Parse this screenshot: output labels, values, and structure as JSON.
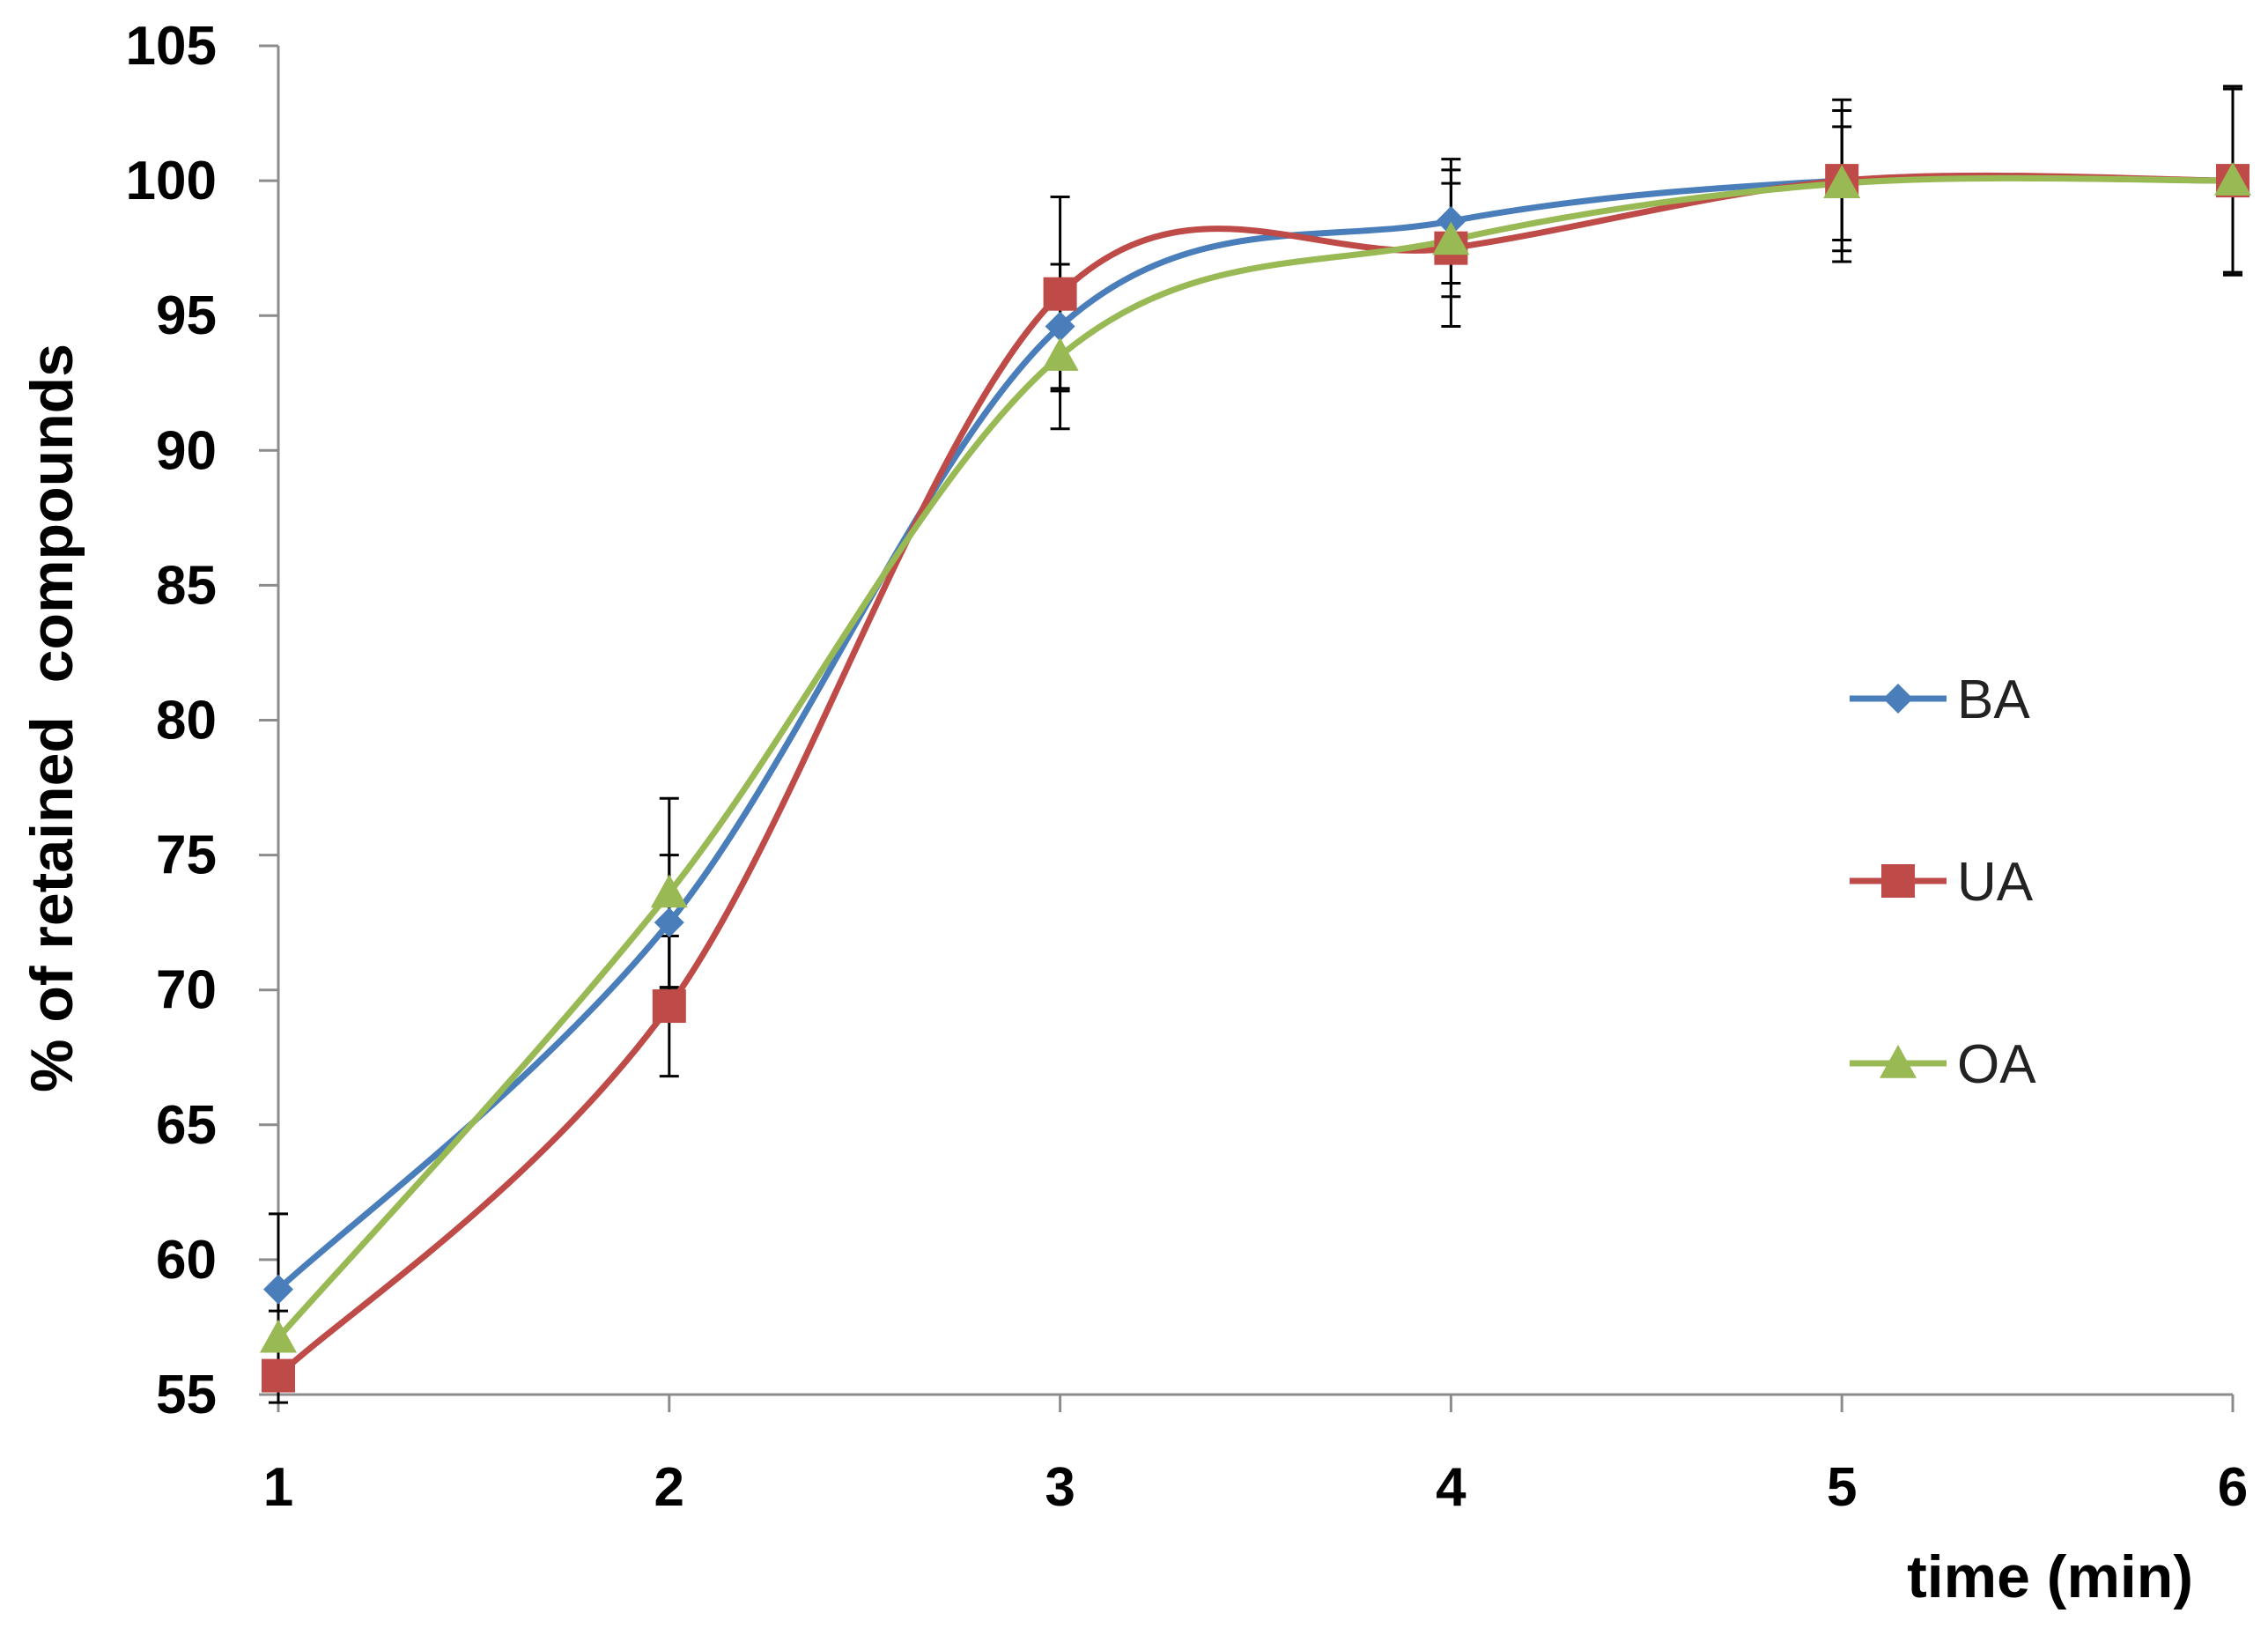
{
  "chart_data": {
    "type": "line",
    "xlabel": "time (min)",
    "ylabel": "% of retained  compounds",
    "x": [
      1,
      2,
      3,
      4,
      5,
      6
    ],
    "xlim": [
      1,
      6
    ],
    "ylim": [
      55,
      105
    ],
    "yticks": [
      55,
      60,
      65,
      70,
      75,
      80,
      85,
      90,
      95,
      100,
      105
    ],
    "xticks": [
      1,
      2,
      3,
      4,
      5,
      6
    ],
    "grid": false,
    "legend_position": "right",
    "smoothed": true,
    "series": [
      {
        "name": "BA",
        "color": "#4a7ebb",
        "marker": "diamond",
        "values": [
          58.9,
          72.5,
          94.6,
          98.5,
          100.0,
          100.0
        ],
        "errors": [
          2.8,
          2.5,
          2.3,
          2.3,
          2.6,
          3.4
        ]
      },
      {
        "name": "UA",
        "color": "#be4b48",
        "marker": "square",
        "values": [
          55.7,
          69.4,
          95.8,
          97.5,
          100.0,
          100.0
        ],
        "errors": [
          1.0,
          2.6,
          3.6,
          2.9,
          3.0,
          3.5
        ]
      },
      {
        "name": "OA",
        "color": "#98b954",
        "marker": "triangle",
        "values": [
          57.1,
          73.6,
          93.5,
          97.8,
          99.9,
          100.0
        ],
        "errors": [
          1.0,
          3.5,
          2.7,
          2.1,
          2.1,
          3.4
        ]
      }
    ]
  }
}
